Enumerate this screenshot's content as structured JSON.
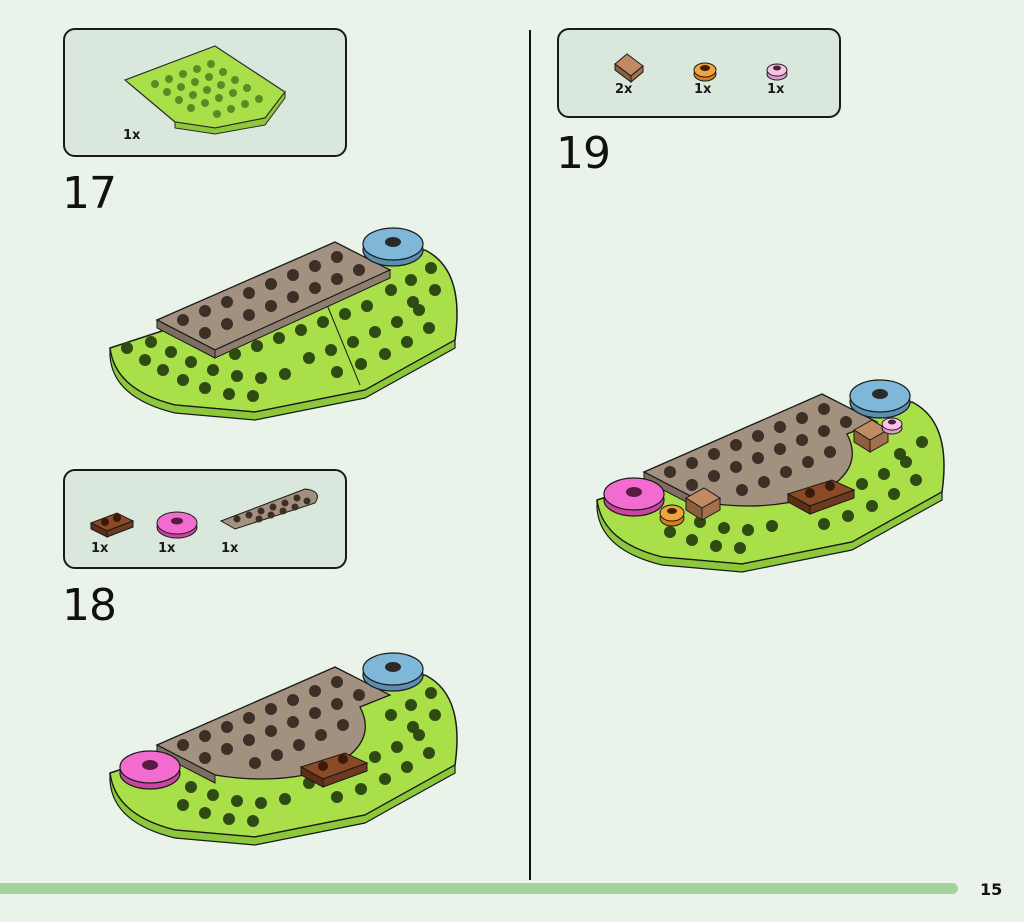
{
  "colors": {
    "background": "#e9f3ea",
    "parts_box": "#dae7dc",
    "lime": "#a9e04a",
    "tan": "#a39180",
    "blue": "#7fb7d8",
    "pink": "#f26ccf",
    "brown": "#7a3a1e",
    "orange": "#f2a33c",
    "progress": "#a3d39b"
  },
  "steps": [
    {
      "number": "17",
      "parts": [
        {
          "qty": "1x",
          "part": "lime-round-plate"
        }
      ]
    },
    {
      "number": "18",
      "parts": [
        {
          "qty": "1x",
          "part": "brown-plate-1x2"
        },
        {
          "qty": "1x",
          "part": "pink-round-tile"
        },
        {
          "qty": "1x",
          "part": "tan-curved-plate"
        }
      ]
    },
    {
      "number": "19",
      "parts": [
        {
          "qty": "2x",
          "part": "tan-slope"
        },
        {
          "qty": "1x",
          "part": "orange-round-plate"
        },
        {
          "qty": "1x",
          "part": "pink-flower"
        }
      ]
    }
  ],
  "page": {
    "number": "15"
  }
}
